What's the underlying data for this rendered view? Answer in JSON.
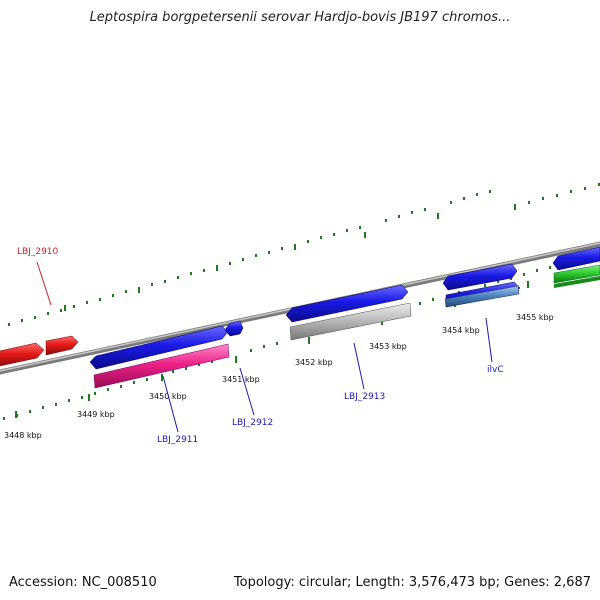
{
  "title": "Leptospira borgpetersenii serovar Hardjo-bovis JB197 chromos...",
  "footer": {
    "accession": "Accession: NC_008510",
    "summary": "Topology: circular; Length: 3,576,473 bp; Genes: 2,687"
  },
  "colors": {
    "backbone": "#888888",
    "tick": "#1f7a1f",
    "cds_forward": "#1a1ae6",
    "cds_reverse": "#e61a1a",
    "rRNA": "#2ecc2e",
    "pseudo": "#bbbbbb",
    "tRNA": "#ee2288",
    "misc": "#4f86c0",
    "label_blue": "#1a1ab4",
    "label_red": "#cc2222"
  },
  "ticks": [
    {
      "kbp": 3448,
      "label": "3448 kbp"
    },
    {
      "kbp": 3449,
      "label": "3449 kbp"
    },
    {
      "kbp": 3450,
      "label": "3450 kbp"
    },
    {
      "kbp": 3451,
      "label": "3451 kbp"
    },
    {
      "kbp": 3452,
      "label": "3452 kbp"
    },
    {
      "kbp": 3453,
      "label": "3453 kbp"
    },
    {
      "kbp": 3454,
      "label": "3454 kbp"
    },
    {
      "kbp": 3455,
      "label": "3455 kbp"
    }
  ],
  "genes": [
    {
      "id": "LBJ_2910",
      "label": "LBJ_2910",
      "color": "red"
    },
    {
      "id": "LBJ_2911",
      "label": "LBJ_2911",
      "color": "blue"
    },
    {
      "id": "LBJ_2912",
      "label": "LBJ_2912",
      "color": "blue"
    },
    {
      "id": "LBJ_2913",
      "label": "LBJ_2913",
      "color": "blue"
    },
    {
      "id": "ilvC",
      "label": "ilvC",
      "color": "blue"
    }
  ]
}
